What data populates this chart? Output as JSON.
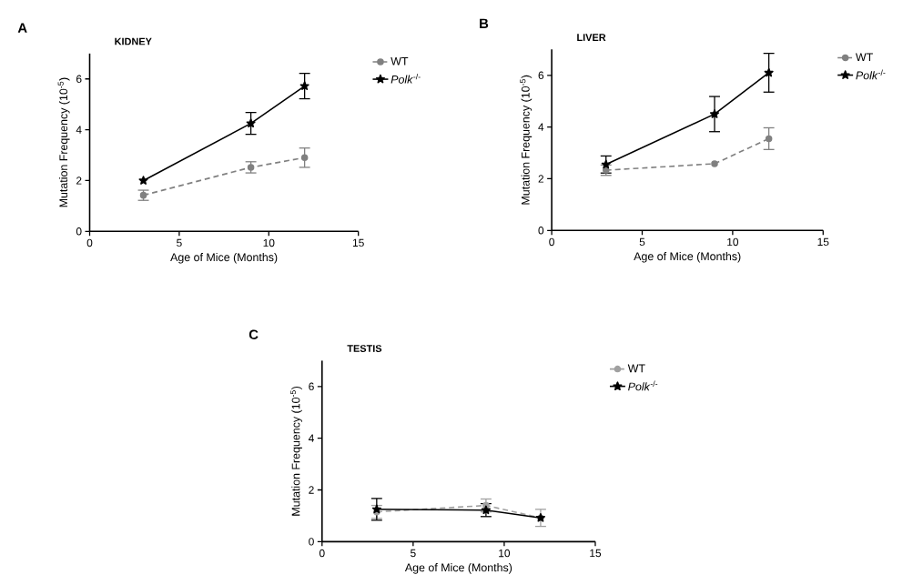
{
  "chart_data": [
    {
      "type": "line",
      "title": "KIDNEY",
      "annotations": [
        "A"
      ],
      "xlabel": "Age of Mice (Months)",
      "ylabel": "Mutation Frequency (10$^{-5}$)",
      "x": [
        3,
        9,
        12
      ],
      "xlim": [
        0,
        15
      ],
      "xticks": [
        0,
        5,
        10,
        15
      ],
      "ylim": [
        0,
        7
      ],
      "yticks": [
        0,
        2,
        4,
        6
      ],
      "legend": "top right",
      "grid": false,
      "series": [
        {
          "name": "WT",
          "color": "#808080",
          "marker": "circle",
          "line_style": "dashed",
          "values": [
            1.42,
            2.52,
            2.9
          ],
          "errors": [
            0.2,
            0.22,
            0.38
          ]
        },
        {
          "name": "*Polk*$^{-/-}$",
          "color": "#000000",
          "marker": "star",
          "line_style": "solid",
          "values": [
            2.0,
            4.25,
            5.72
          ],
          "errors": [
            null,
            0.43,
            0.5
          ]
        }
      ]
    },
    {
      "type": "line",
      "title": "LIVER",
      "annotations": [
        "B"
      ],
      "xlabel": "Age of Mice (Months)",
      "ylabel": "Mutation Frequency (10$^{-5}$)",
      "x": [
        3,
        9,
        12
      ],
      "xlim": [
        0,
        15
      ],
      "xticks": [
        0,
        5,
        10,
        15
      ],
      "ylim": [
        0,
        7
      ],
      "yticks": [
        0,
        2,
        4,
        6
      ],
      "legend": "top right",
      "grid": false,
      "series": [
        {
          "name": "WT",
          "color": "#808080",
          "marker": "circle",
          "line_style": "dashed",
          "values": [
            2.33,
            2.58,
            3.55
          ],
          "errors": [
            0.2,
            null,
            0.42
          ]
        },
        {
          "name": "*Polk*$^{-/-}$",
          "color": "#000000",
          "marker": "star",
          "line_style": "solid",
          "values": [
            2.55,
            4.5,
            6.1
          ],
          "errors": [
            0.33,
            0.68,
            0.75
          ]
        }
      ]
    },
    {
      "type": "line",
      "title": "TESTIS",
      "annotations": [
        "C"
      ],
      "xlabel": "Age of Mice (Months)",
      "ylabel": "Mutation Frequency (10$^{-5}$)",
      "x": [
        3,
        9,
        12
      ],
      "xlim": [
        0,
        15
      ],
      "xticks": [
        0,
        5,
        10,
        15
      ],
      "ylim": [
        0,
        7
      ],
      "yticks": [
        0,
        2,
        4,
        6
      ],
      "legend": "top right",
      "grid": false,
      "series": [
        {
          "name": "WT",
          "color": "#A0A0A0",
          "marker": "circle",
          "line_style": "dashed",
          "values": [
            1.15,
            1.4,
            0.92
          ],
          "errors": [
            0.25,
            0.25,
            0.33
          ]
        },
        {
          "name": "*Polk*$^{-/-}$",
          "color": "#000000",
          "marker": "star",
          "line_style": "solid",
          "values": [
            1.25,
            1.22,
            0.92
          ],
          "errors": [
            0.42,
            0.25,
            null
          ]
        }
      ]
    }
  ]
}
